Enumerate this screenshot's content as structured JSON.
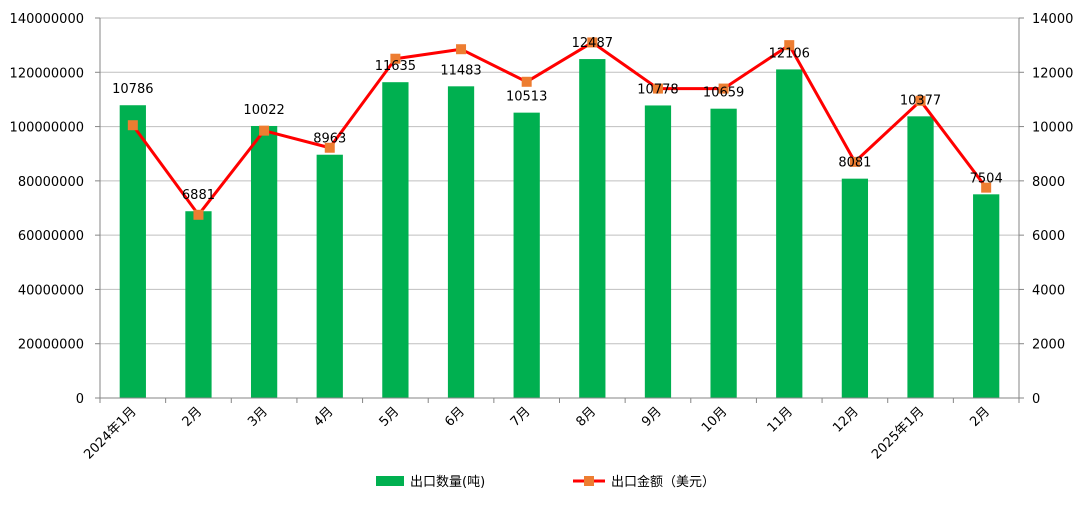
{
  "colors": {
    "bar": "#00b050",
    "line": "#ff0000",
    "marker": "#ed7d31",
    "grid": "#bfbfbf",
    "axis": "#868686"
  },
  "chart_data": {
    "type": "bar",
    "categories": [
      "2024年1月",
      "2月",
      "3月",
      "4月",
      "5月",
      "6月",
      "7月",
      "8月",
      "9月",
      "10月",
      "11月",
      "12月",
      "2025年1月",
      "2月"
    ],
    "series": [
      {
        "name": "出口数量(吨)",
        "type": "bar",
        "axis": "left",
        "values": [
          107860000,
          68810000,
          100220000,
          89630000,
          116350000,
          114830000,
          105130000,
          124870000,
          107780000,
          106590000,
          121060000,
          80810000,
          103770000,
          75040000
        ],
        "data_labels": [
          "10786",
          "6881",
          "10022",
          "8963",
          "11635",
          "11483",
          "10513",
          "12487",
          "10778",
          "10659",
          "12106",
          "8081",
          "10377",
          "7504"
        ]
      },
      {
        "name": "出口金额（美元）",
        "type": "line",
        "axis": "right",
        "values": [
          10050,
          6750,
          9850,
          9220,
          12500,
          12850,
          11650,
          13100,
          11400,
          11400,
          13000,
          8700,
          10950,
          7750
        ]
      }
    ],
    "y_left": {
      "min": 0,
      "max": 140000000,
      "step": 20000000,
      "ticks": [
        "0",
        "20000000",
        "40000000",
        "60000000",
        "80000000",
        "100000000",
        "120000000",
        "140000000"
      ]
    },
    "y_right": {
      "min": 0,
      "max": 14000,
      "step": 2000,
      "ticks": [
        "0",
        "2000",
        "4000",
        "6000",
        "8000",
        "10000",
        "12000",
        "14000"
      ]
    },
    "grid": true,
    "legend": {
      "position": "bottom",
      "items": [
        "出口数量(吨)",
        "出口金额（美元）"
      ]
    }
  }
}
